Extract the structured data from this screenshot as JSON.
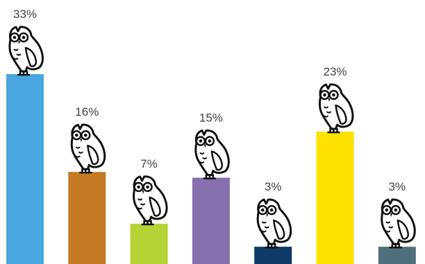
{
  "chart_data": {
    "type": "bar",
    "categories": [
      "",
      "",
      "",
      "",
      "",
      "",
      ""
    ],
    "values": [
      33,
      16,
      7,
      15,
      3,
      23,
      3
    ],
    "data_labels": [
      "33%",
      "16%",
      "7%",
      "15%",
      "3%",
      "23%",
      "3%"
    ],
    "colors": [
      "#4aa6de",
      "#c47a22",
      "#b5d334",
      "#8670ae",
      "#0e3a66",
      "#fde200",
      "#4f6f7c"
    ],
    "ylim": [
      0,
      36
    ],
    "grid": false,
    "legend": "none",
    "marker_icon": "owl-icon"
  }
}
